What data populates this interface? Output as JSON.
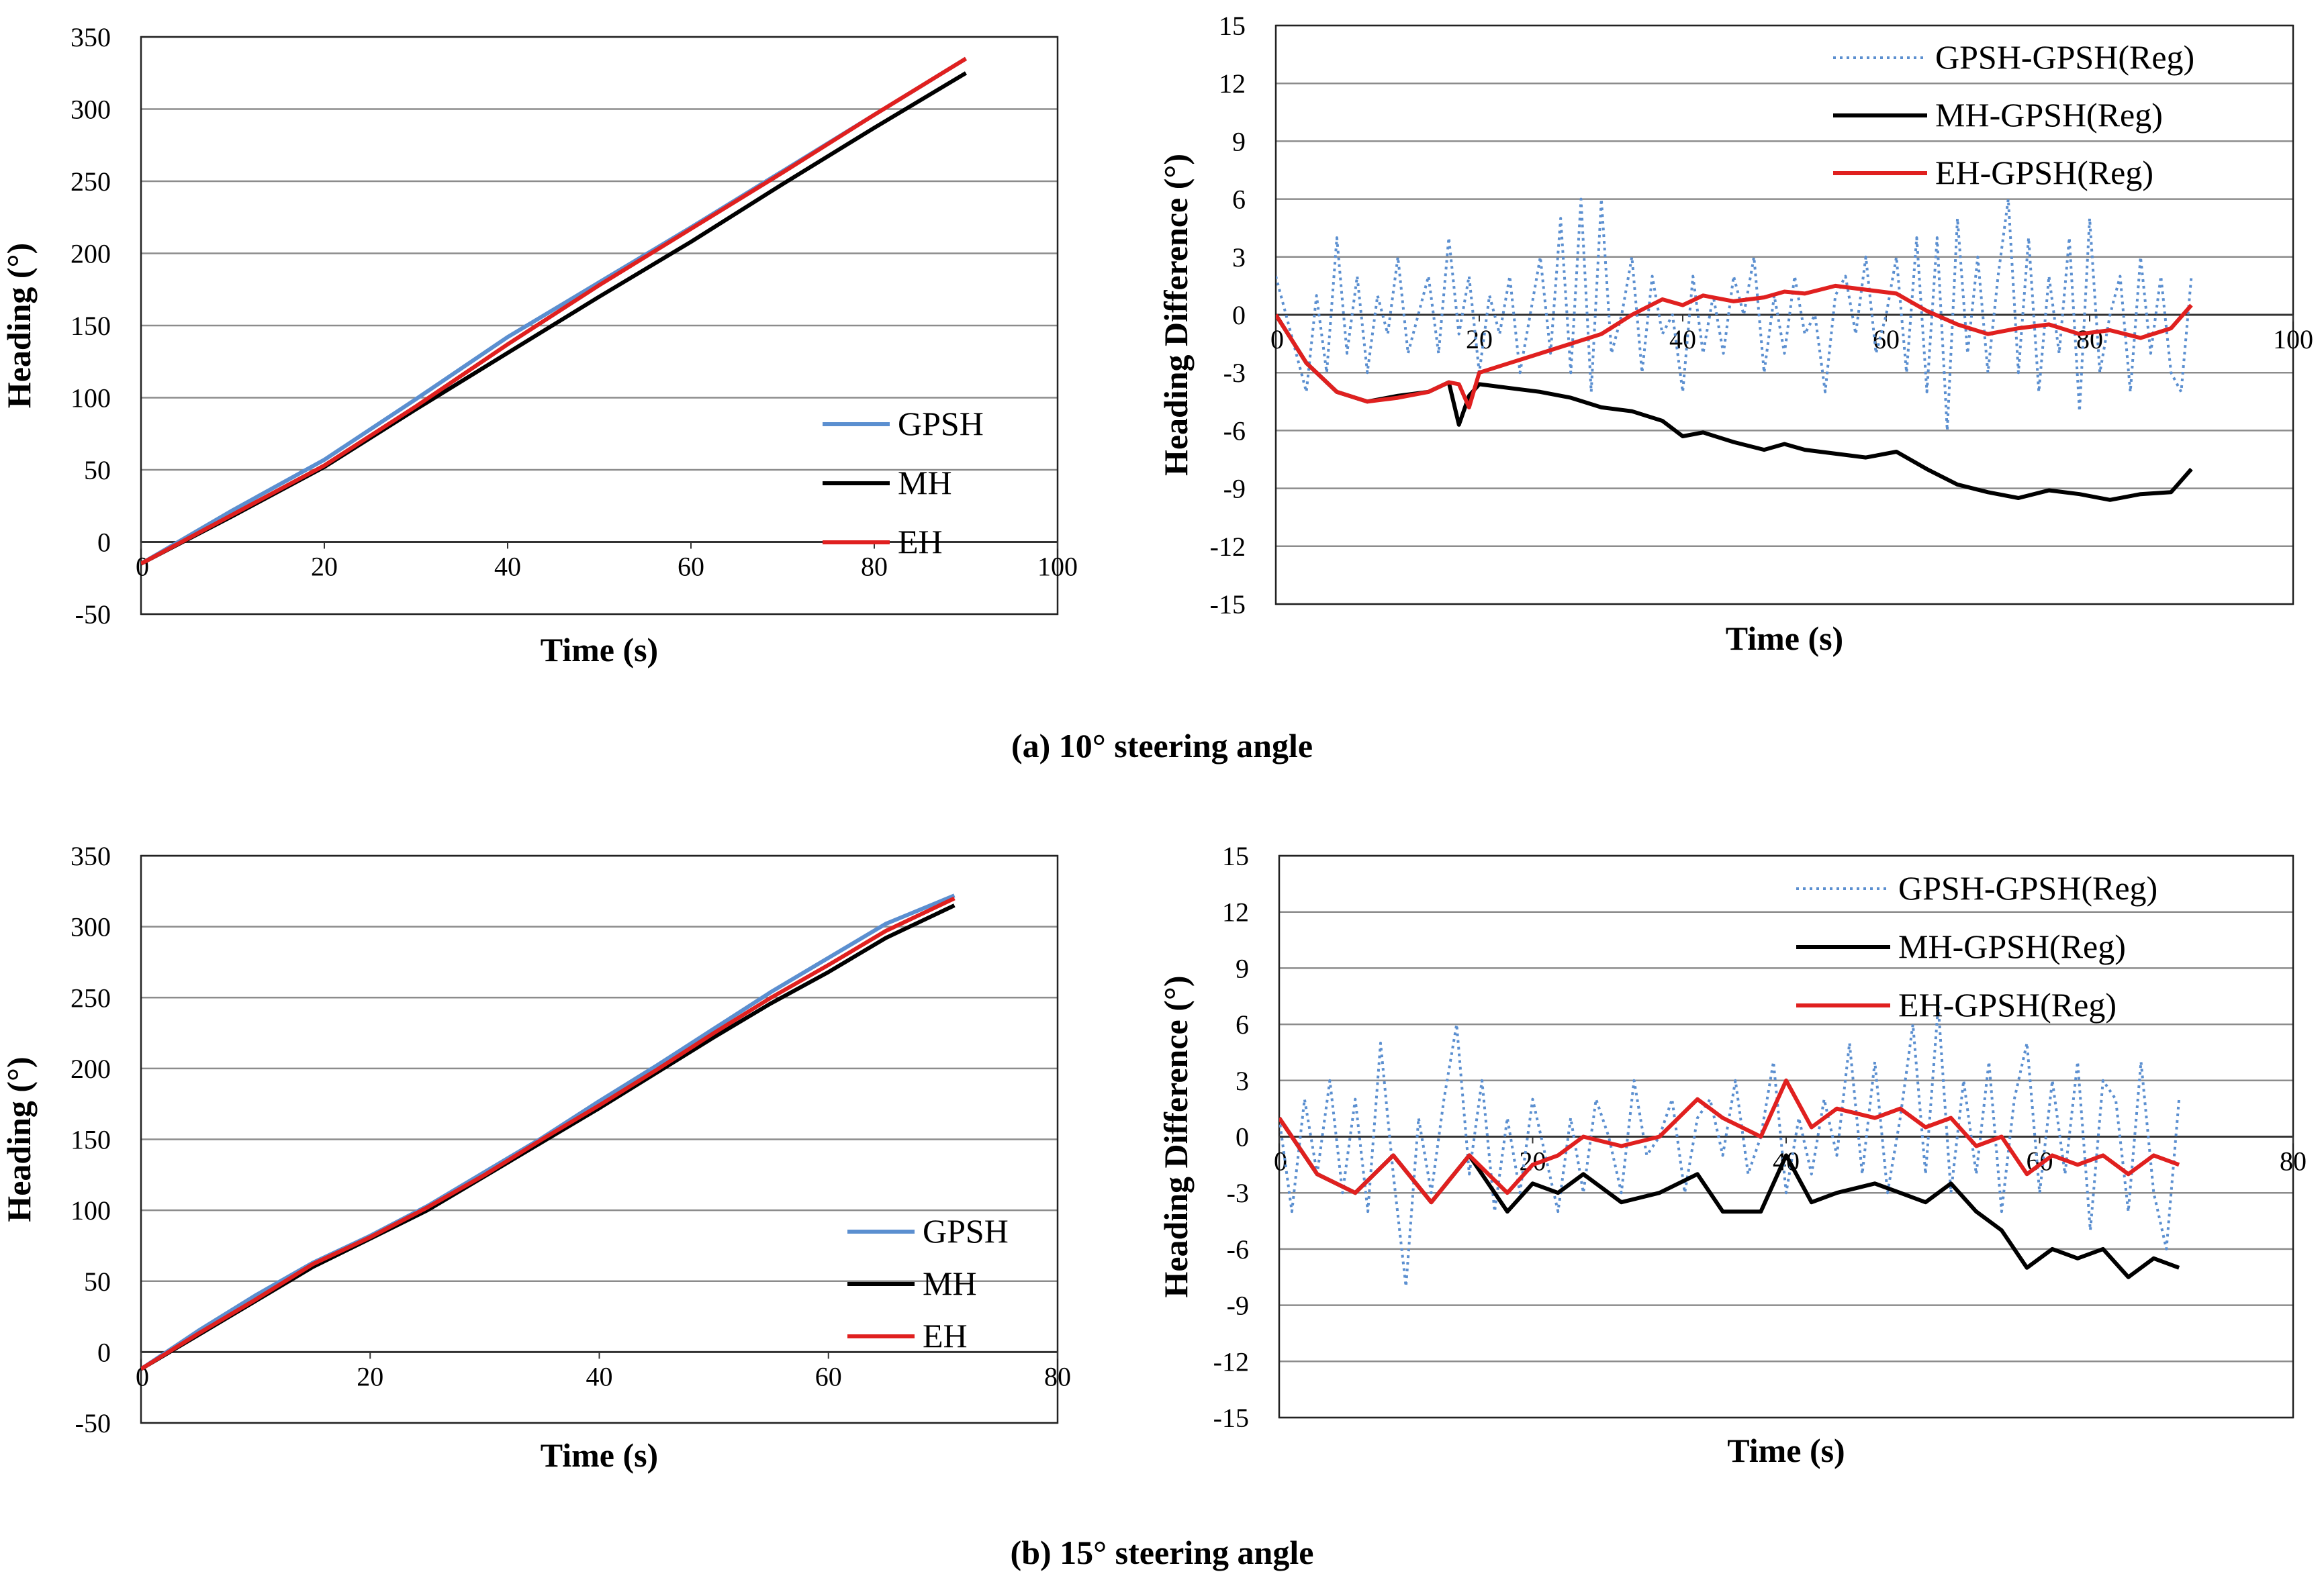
{
  "captions": {
    "a": "(a) 10° steering angle",
    "b": "(b) 15° steering angle"
  },
  "colors": {
    "gpsh": "#5b8fd0",
    "mh": "#000000",
    "eh": "#e0201f",
    "grid": "#8c8c8c",
    "frame": "#222222"
  },
  "chart_data": [
    {
      "id": "a-heading",
      "type": "line",
      "xlabel": "Time (s)",
      "ylabel": "Heading (°)",
      "xlim": [
        0,
        100
      ],
      "ylim": [
        -50,
        350
      ],
      "xticks": [
        "0",
        "20",
        "40",
        "60",
        "80",
        "100"
      ],
      "yticks": [
        "-50",
        "0",
        "50",
        "100",
        "150",
        "200",
        "250",
        "300",
        "350"
      ],
      "legend_position": "bottom-right",
      "series": [
        {
          "name": "GPSH",
          "style": "solid",
          "x": [
            0,
            10,
            20,
            30,
            40,
            50,
            60,
            70,
            80,
            90
          ],
          "y": [
            -15,
            22,
            57,
            99,
            142,
            180,
            218,
            257,
            296,
            335
          ]
        },
        {
          "name": "MH",
          "style": "solid",
          "x": [
            0,
            10,
            20,
            30,
            40,
            50,
            60,
            70,
            80,
            90
          ],
          "y": [
            -15,
            18,
            52,
            92,
            131,
            170,
            208,
            248,
            287,
            325
          ]
        },
        {
          "name": "EH",
          "style": "solid",
          "x": [
            0,
            10,
            20,
            30,
            40,
            50,
            60,
            70,
            80,
            90
          ],
          "y": [
            -15,
            19,
            53,
            94,
            137,
            178,
            217,
            256,
            296,
            335
          ]
        }
      ]
    },
    {
      "id": "a-diff",
      "type": "line",
      "xlabel": "Time (s)",
      "ylabel": "Heading Difference (°)",
      "xlim": [
        0,
        100
      ],
      "ylim": [
        -15,
        15
      ],
      "xticks": [
        "0",
        "20",
        "40",
        "60",
        "80",
        "100"
      ],
      "yticks": [
        "-15",
        "-12",
        "-9",
        "-6",
        "-3",
        "0",
        "3",
        "6",
        "9",
        "12",
        "15"
      ],
      "legend_position": "top-right",
      "series": [
        {
          "name": "GPSH-GPSH(Reg)",
          "style": "dotted",
          "x": [
            0,
            1,
            2,
            3,
            4,
            5,
            6,
            7,
            8,
            9,
            10,
            11,
            12,
            13,
            14,
            15,
            16,
            17,
            18,
            19,
            20,
            21,
            22,
            23,
            24,
            25,
            26,
            27,
            28,
            29,
            30,
            31,
            32,
            33,
            34,
            35,
            36,
            37,
            38,
            39,
            40,
            41,
            42,
            43,
            44,
            45,
            46,
            47,
            48,
            49,
            50,
            51,
            52,
            53,
            54,
            55,
            56,
            57,
            58,
            59,
            60,
            61,
            62,
            63,
            64,
            65,
            66,
            67,
            68,
            69,
            70,
            71,
            72,
            73,
            74,
            75,
            76,
            77,
            78,
            79,
            80,
            81,
            82,
            83,
            84,
            85,
            86,
            87,
            88,
            89,
            90
          ],
          "y": [
            2,
            0,
            -2,
            -4,
            1,
            -3,
            4,
            -2,
            2,
            -3,
            1,
            -1,
            3,
            -2,
            0,
            2,
            -2,
            4,
            -1,
            2,
            -3,
            1,
            -1,
            2,
            -3,
            0,
            3,
            -2,
            5,
            -3,
            6,
            -4,
            6,
            -2,
            0,
            3,
            -3,
            2,
            -1,
            0,
            -4,
            2,
            -2,
            1,
            -2,
            2,
            0,
            3,
            -3,
            1,
            -2,
            2,
            -1,
            0,
            -4,
            1,
            2,
            -1,
            3,
            -2,
            0,
            3,
            -3,
            4,
            -4,
            4,
            -6,
            5,
            -2,
            3,
            -3,
            2,
            6,
            -3,
            4,
            -4,
            2,
            -2,
            4,
            -5,
            5,
            -3,
            0,
            2,
            -4,
            3,
            -2,
            2,
            -3,
            -4,
            2
          ]
        },
        {
          "name": "MH-GPSH(Reg)",
          "style": "solid",
          "x": [
            0,
            3,
            6,
            9,
            12,
            15,
            17,
            18,
            19,
            20,
            23,
            26,
            29,
            32,
            35,
            38,
            40,
            42,
            45,
            48,
            50,
            52,
            55,
            58,
            61,
            64,
            67,
            70,
            73,
            76,
            79,
            82,
            85,
            88,
            90
          ],
          "y": [
            0,
            -2.5,
            -4,
            -4.5,
            -4.2,
            -4,
            -3.5,
            -5.7,
            -4.2,
            -3.6,
            -3.8,
            -4,
            -4.3,
            -4.8,
            -5,
            -5.5,
            -6.3,
            -6.1,
            -6.6,
            -7,
            -6.7,
            -7,
            -7.2,
            -7.4,
            -7.1,
            -8,
            -8.8,
            -9.2,
            -9.5,
            -9.1,
            -9.3,
            -9.6,
            -9.3,
            -9.2,
            -8
          ]
        },
        {
          "name": "EH-GPSH(Reg)",
          "style": "solid",
          "x": [
            0,
            3,
            6,
            9,
            12,
            15,
            17,
            18,
            19,
            20,
            23,
            26,
            29,
            32,
            35,
            38,
            40,
            42,
            45,
            48,
            50,
            52,
            55,
            58,
            61,
            64,
            67,
            70,
            73,
            76,
            79,
            82,
            85,
            88,
            90
          ],
          "y": [
            0,
            -2.5,
            -4,
            -4.5,
            -4.3,
            -4,
            -3.5,
            -3.6,
            -4.8,
            -3,
            -2.5,
            -2,
            -1.5,
            -1,
            0,
            0.8,
            0.5,
            1,
            0.7,
            0.9,
            1.2,
            1.1,
            1.5,
            1.3,
            1.1,
            0.2,
            -0.5,
            -1,
            -0.7,
            -0.5,
            -1,
            -0.8,
            -1.2,
            -0.7,
            0.5
          ]
        }
      ]
    },
    {
      "id": "b-heading",
      "type": "line",
      "xlabel": "Time (s)",
      "ylabel": "Heading (°)",
      "xlim": [
        0,
        80
      ],
      "ylim": [
        -50,
        350
      ],
      "xticks": [
        "0",
        "20",
        "40",
        "60",
        "80"
      ],
      "yticks": [
        "-50",
        "0",
        "50",
        "100",
        "150",
        "200",
        "250",
        "300",
        "350"
      ],
      "legend_position": "bottom-right",
      "series": [
        {
          "name": "GPSH",
          "style": "solid",
          "x": [
            0,
            5,
            10,
            15,
            20,
            25,
            30,
            35,
            40,
            45,
            50,
            55,
            60,
            65,
            71
          ],
          "y": [
            -12,
            15,
            40,
            63,
            82,
            103,
            127,
            151,
            177,
            202,
            228,
            254,
            278,
            302,
            322
          ]
        },
        {
          "name": "MH",
          "style": "solid",
          "x": [
            0,
            5,
            10,
            15,
            20,
            25,
            30,
            35,
            40,
            45,
            50,
            55,
            60,
            65,
            71
          ],
          "y": [
            -12,
            12,
            36,
            60,
            80,
            100,
            124,
            148,
            172,
            197,
            222,
            246,
            268,
            292,
            315
          ]
        },
        {
          "name": "EH",
          "style": "solid",
          "x": [
            0,
            5,
            10,
            15,
            20,
            25,
            30,
            35,
            40,
            45,
            50,
            55,
            60,
            65,
            71
          ],
          "y": [
            -12,
            13,
            37,
            62,
            81,
            102,
            125,
            150,
            174,
            199,
            225,
            250,
            273,
            297,
            320
          ]
        }
      ]
    },
    {
      "id": "b-diff",
      "type": "line",
      "xlabel": "Time (s)",
      "ylabel": "Heading Difference (°)",
      "xlim": [
        0,
        80
      ],
      "ylim": [
        -15,
        15
      ],
      "xticks": [
        "0",
        "20",
        "40",
        "60",
        "80"
      ],
      "yticks": [
        "-15",
        "-12",
        "-9",
        "-6",
        "-3",
        "0",
        "3",
        "6",
        "9",
        "12",
        "15"
      ],
      "legend_position": "top-right",
      "series": [
        {
          "name": "GPSH-GPSH(Reg)",
          "style": "dotted",
          "x": [
            0,
            1,
            2,
            3,
            4,
            5,
            6,
            7,
            8,
            9,
            10,
            11,
            12,
            13,
            14,
            15,
            16,
            17,
            18,
            19,
            20,
            21,
            22,
            23,
            24,
            25,
            26,
            27,
            28,
            29,
            30,
            31,
            32,
            33,
            34,
            35,
            36,
            37,
            38,
            39,
            40,
            41,
            42,
            43,
            44,
            45,
            46,
            47,
            48,
            49,
            50,
            51,
            52,
            53,
            54,
            55,
            56,
            57,
            58,
            59,
            60,
            61,
            62,
            63,
            64,
            65,
            66,
            67,
            68,
            69,
            70,
            71
          ],
          "y": [
            1,
            -4,
            2,
            -2,
            3,
            -3,
            2,
            -4,
            5,
            -2,
            -8,
            1,
            -3,
            2,
            6,
            -2,
            3,
            -4,
            1,
            -3,
            2,
            -1,
            -4,
            1,
            -3,
            2,
            0,
            -3,
            3,
            -1,
            0,
            2,
            -3,
            1,
            2,
            -1,
            3,
            -2,
            0,
            4,
            -3,
            1,
            -2,
            2,
            -1,
            5,
            -2,
            4,
            -3,
            1,
            6,
            -2,
            7,
            -3,
            3,
            -2,
            4,
            -4,
            2,
            5,
            -3,
            3,
            -2,
            4,
            -5,
            3,
            2,
            -4,
            4,
            -3,
            -6,
            2
          ]
        },
        {
          "name": "MH-GPSH(Reg)",
          "style": "solid",
          "x": [
            0,
            3,
            6,
            9,
            12,
            15,
            18,
            20,
            22,
            24,
            27,
            30,
            33,
            35,
            38,
            40,
            42,
            44,
            47,
            49,
            51,
            53,
            55,
            57,
            59,
            61,
            63,
            65,
            67,
            69,
            71
          ],
          "y": [
            1,
            -2,
            -3,
            -1,
            -3.5,
            -1,
            -4,
            -2.5,
            -3,
            -2,
            -3.5,
            -3,
            -2,
            -4,
            -4,
            -1,
            -3.5,
            -3,
            -2.5,
            -3,
            -3.5,
            -2.5,
            -4,
            -5,
            -7,
            -6,
            -6.5,
            -6,
            -7.5,
            -6.5,
            -7
          ]
        },
        {
          "name": "EH-GPSH(Reg)",
          "style": "solid",
          "x": [
            0,
            3,
            6,
            9,
            12,
            15,
            18,
            20,
            22,
            24,
            27,
            30,
            33,
            35,
            38,
            40,
            42,
            44,
            47,
            49,
            51,
            53,
            55,
            57,
            59,
            61,
            63,
            65,
            67,
            69,
            71
          ],
          "y": [
            1,
            -2,
            -3,
            -1,
            -3.5,
            -1,
            -3,
            -1.5,
            -1,
            0,
            -0.5,
            0,
            2,
            1,
            0,
            3,
            0.5,
            1.5,
            1,
            1.5,
            0.5,
            1,
            -0.5,
            0,
            -2,
            -1,
            -1.5,
            -1,
            -2,
            -1,
            -1.5
          ]
        }
      ]
    }
  ]
}
